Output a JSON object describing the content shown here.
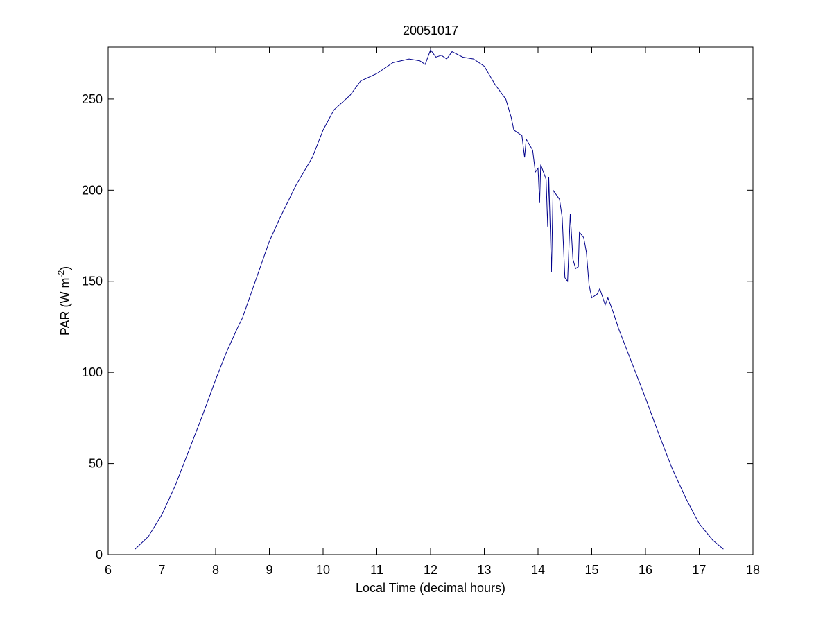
{
  "chart_data": {
    "type": "line",
    "title": "20051017",
    "xlabel": "Local Time (decimal hours)",
    "ylabel": [
      "PAR (W m",
      "-2",
      ")"
    ],
    "x": [
      6.5,
      6.75,
      7.0,
      7.25,
      7.5,
      7.75,
      8.0,
      8.2,
      8.4,
      8.5,
      8.75,
      9.0,
      9.2,
      9.5,
      9.8,
      10.0,
      10.2,
      10.5,
      10.7,
      11.0,
      11.3,
      11.6,
      11.8,
      11.9,
      12.0,
      12.1,
      12.2,
      12.3,
      12.4,
      12.6,
      12.8,
      13.0,
      13.2,
      13.4,
      13.5,
      13.55,
      13.7,
      13.75,
      13.78,
      13.9,
      13.95,
      14.0,
      14.03,
      14.05,
      14.15,
      14.18,
      14.2,
      14.25,
      14.28,
      14.4,
      14.45,
      14.5,
      14.55,
      14.6,
      14.65,
      14.7,
      14.75,
      14.77,
      14.85,
      14.9,
      14.95,
      15.0,
      15.1,
      15.15,
      15.25,
      15.3,
      15.4,
      15.5,
      15.75,
      16.0,
      16.25,
      16.5,
      16.75,
      17.0,
      17.25,
      17.45
    ],
    "values": [
      3,
      10,
      22,
      38,
      57,
      76,
      96,
      111,
      124,
      130,
      151,
      172,
      185,
      203,
      218,
      233,
      244,
      252,
      260,
      264,
      270,
      272,
      271,
      269,
      277,
      273,
      274,
      272,
      276,
      273,
      272,
      268,
      258,
      250,
      240,
      233,
      230,
      218,
      228,
      222,
      210,
      212,
      193,
      214,
      206,
      180,
      207,
      155,
      200,
      195,
      185,
      152,
      150,
      187,
      162,
      157,
      158,
      177,
      174,
      166,
      148,
      141,
      143,
      146,
      137,
      141,
      133,
      124,
      105,
      86,
      66,
      47,
      31,
      17,
      8,
      3
    ],
    "color": "#00008b",
    "xlim": [
      6,
      18
    ],
    "xticks": [
      6,
      7,
      8,
      9,
      10,
      11,
      12,
      13,
      14,
      15,
      16,
      17,
      18
    ],
    "ylim": [
      0,
      278.5
    ],
    "yticks": [
      0,
      50,
      100,
      150,
      200,
      250
    ],
    "grid": false
  }
}
